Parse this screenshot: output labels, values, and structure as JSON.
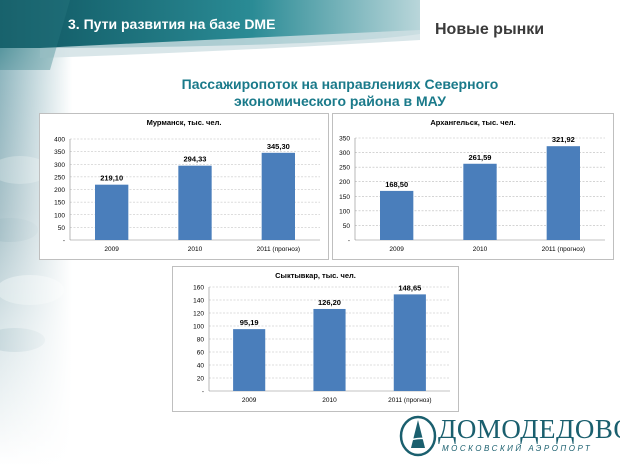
{
  "header": {
    "section_title": "3. Пути развития на базе DME",
    "slide_title": "Новые рынки"
  },
  "main_title_line1": "Пассажиропоток на направлениях Северного",
  "main_title_line2": "экономического района в МАУ",
  "logo": {
    "name": "ДОМОДЕДОВО",
    "subtitle": "МОСКОВСКИЙ АЭРОПОРТ"
  },
  "colors": {
    "bar": "#4a7ebb",
    "title_teal": "#1a7a8a",
    "header_teal": "#1d6f7e"
  },
  "chart_data": [
    {
      "type": "bar",
      "title": "Мурманск, тыс. чел.",
      "categories": [
        "2009",
        "2010",
        "2011 (прогноз)"
      ],
      "values": [
        219.1,
        294.33,
        345.3
      ],
      "labels": [
        "219,10",
        "294,33",
        "345,30"
      ],
      "yticks": [
        "-",
        "50",
        "100",
        "150",
        "200",
        "250",
        "300",
        "350",
        "400"
      ],
      "ylim": [
        0,
        400
      ],
      "grid": true
    },
    {
      "type": "bar",
      "title": "Архангельск, тыс. чел.",
      "categories": [
        "2009",
        "2010",
        "2011 (прогноз)"
      ],
      "values": [
        168.5,
        261.59,
        321.92
      ],
      "labels": [
        "168,50",
        "261,59",
        "321,92"
      ],
      "yticks": [
        "-",
        "50",
        "100",
        "150",
        "200",
        "250",
        "300",
        "350"
      ],
      "ylim": [
        0,
        350
      ],
      "grid": true
    },
    {
      "type": "bar",
      "title": "Сыктывкар, тыс. чел.",
      "categories": [
        "2009",
        "2010",
        "2011 (прогноз)"
      ],
      "values": [
        95.19,
        126.2,
        148.65
      ],
      "labels": [
        "95,19",
        "126,20",
        "148,65"
      ],
      "yticks": [
        "-",
        "20",
        "40",
        "60",
        "80",
        "100",
        "120",
        "140",
        "160"
      ],
      "ylim": [
        0,
        160
      ],
      "grid": true
    }
  ]
}
